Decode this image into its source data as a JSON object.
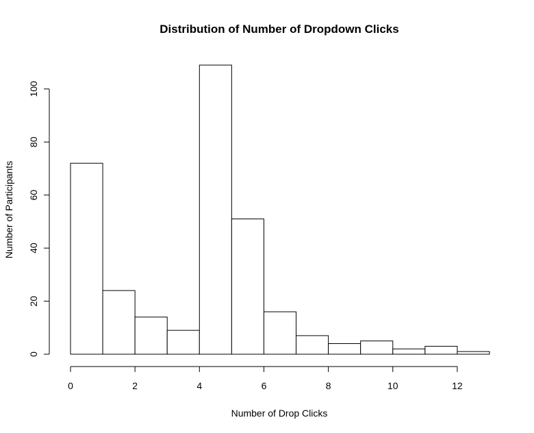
{
  "chart_data": {
    "type": "bar",
    "title": "Distribution of Number of Dropdown Clicks",
    "xlabel": "Number of Drop Clicks",
    "ylabel": "Number of Participants",
    "bins": [
      {
        "x0": 0,
        "x1": 1,
        "count": 72
      },
      {
        "x0": 1,
        "x1": 2,
        "count": 24
      },
      {
        "x0": 2,
        "x1": 3,
        "count": 14
      },
      {
        "x0": 3,
        "x1": 4,
        "count": 9
      },
      {
        "x0": 4,
        "x1": 5,
        "count": 109
      },
      {
        "x0": 5,
        "x1": 6,
        "count": 51
      },
      {
        "x0": 6,
        "x1": 7,
        "count": 16
      },
      {
        "x0": 7,
        "x1": 8,
        "count": 7
      },
      {
        "x0": 8,
        "x1": 9,
        "count": 4
      },
      {
        "x0": 9,
        "x1": 10,
        "count": 5
      },
      {
        "x0": 10,
        "x1": 11,
        "count": 2
      },
      {
        "x0": 11,
        "x1": 12,
        "count": 3
      },
      {
        "x0": 12,
        "x1": 13,
        "count": 1
      }
    ],
    "xlim": [
      0,
      13
    ],
    "ylim": [
      0,
      109
    ],
    "x_ticks": [
      0,
      2,
      4,
      6,
      8,
      10,
      12
    ],
    "x_tick_labels": [
      "0",
      "2",
      "4",
      "6",
      "8",
      "10",
      "12"
    ],
    "y_ticks": [
      0,
      20,
      40,
      60,
      80,
      100
    ],
    "y_tick_labels": [
      "0",
      "20",
      "40",
      "60",
      "80",
      "100"
    ],
    "colors": {
      "bar_fill": "#ffffff",
      "bar_stroke": "#000000",
      "axis": "#000000",
      "background": "#ffffff"
    },
    "grid": false,
    "legend": "none"
  }
}
